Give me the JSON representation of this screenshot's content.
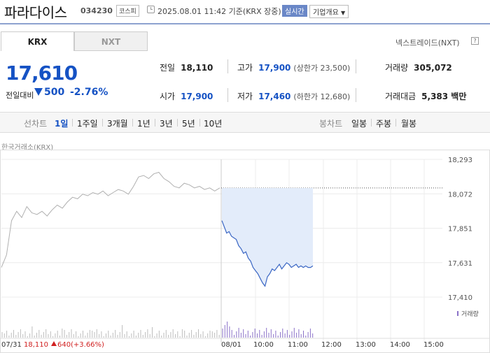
{
  "header": {
    "name": "파라다이스",
    "code": "034230",
    "market": "코스피",
    "timestamp": "2025.08.01 11:42 기준(KRX 장중)",
    "live_label": "실시간",
    "corp_label": "기업개요"
  },
  "tabs": [
    "KRX",
    "NXT"
  ],
  "nxt_link": "넥스트레이드(NXT)",
  "nxt_help": "?",
  "quote": {
    "price": "17,610",
    "diff_label": "전일대비",
    "diff": "500",
    "diff_pct": "-2.76%"
  },
  "stats": {
    "prev_label": "전일",
    "prev": "18,110",
    "high_label": "고가",
    "high": "17,900",
    "upper_limit": "(상한가 23,500)",
    "volume_label": "거래량",
    "volume": "305,072",
    "open_label": "시가",
    "open": "17,900",
    "low_label": "저가",
    "low": "17,460",
    "lower_limit": "(하한가 12,680)",
    "amount_label": "거래대금",
    "amount": "5,383 백만"
  },
  "range_bar": {
    "line_label": "선차트",
    "line_ranges": [
      "1일",
      "1주일",
      "3개월",
      "1년",
      "3년",
      "5년",
      "10년"
    ],
    "selected": "1일",
    "candle_label": "봉차트",
    "candle_ranges": [
      "일봉",
      "주봉",
      "월봉"
    ]
  },
  "exchange_label": "한국거래소(KRX)",
  "colors": {
    "accent": "#1552c4",
    "up": "#d02020",
    "area": "#e3ecfa",
    "line": "#3a66c4",
    "prev_line": "#b0b0b0"
  },
  "chart_data": {
    "type": "line",
    "y_ticks": [
      "18,293",
      "18,072",
      "17,851",
      "17,631",
      "17,410"
    ],
    "ylim": [
      17410,
      18293
    ],
    "x_ticks": [
      "07/31",
      "08/01",
      "10:00",
      "11:00",
      "12:00",
      "13:00",
      "14:00",
      "15:00"
    ],
    "volume_label": "거래량",
    "prev_day": {
      "date": "07/31",
      "close": "18,110",
      "change": "640",
      "change_pct": "(+3.66%)"
    },
    "reference_price": 18110,
    "series": [
      {
        "name": "07/31",
        "values": [
          17600,
          17680,
          17900,
          17960,
          17920,
          17990,
          17950,
          17940,
          17960,
          17930,
          17970,
          18000,
          17980,
          18020,
          18050,
          18040,
          18070,
          18060,
          18080,
          18070,
          18090,
          18060,
          18080,
          18100,
          18090,
          18070,
          18120,
          18180,
          18190,
          18170,
          18200,
          18210,
          18170,
          18150,
          18120,
          18110,
          18140,
          18130,
          18110,
          18120,
          18100,
          18110,
          18090,
          18110
        ]
      },
      {
        "name": "08/01",
        "values": [
          17900,
          17860,
          17820,
          17830,
          17800,
          17790,
          17780,
          17740,
          17720,
          17690,
          17700,
          17660,
          17640,
          17600,
          17580,
          17560,
          17530,
          17500,
          17480,
          17540,
          17560,
          17590,
          17580,
          17600,
          17620,
          17590,
          17610,
          17630,
          17620,
          17600,
          17610,
          17620,
          17600,
          17610,
          17600,
          17610,
          17600,
          17600,
          17610
        ]
      }
    ]
  }
}
